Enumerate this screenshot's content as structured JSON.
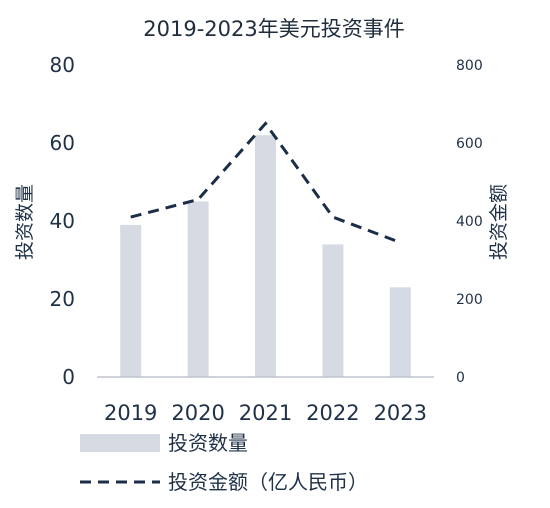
{
  "chart_data": {
    "type": "bar+line",
    "title": "2019-2023年美元投资事件",
    "categories": [
      "2019",
      "2020",
      "2021",
      "2022",
      "2023"
    ],
    "series": [
      {
        "name": "投资数量",
        "type": "bar",
        "axis": "left",
        "values": [
          39,
          45,
          62,
          34,
          23
        ]
      },
      {
        "name": "投资金额（亿人民币）",
        "type": "line",
        "style": "dashed",
        "axis": "right",
        "values": [
          410,
          455,
          650,
          410,
          345
        ]
      }
    ],
    "ylabel_left": "投资数量",
    "ylabel_right": "投资金额",
    "ylim_left": [
      0,
      80
    ],
    "ylim_right": [
      0,
      800
    ],
    "yticks_left": [
      "0",
      "20",
      "40",
      "60",
      "80"
    ],
    "yticks_right": [
      "0",
      "200",
      "400",
      "600",
      "800"
    ],
    "grid": false,
    "legend_position": "bottom",
    "colors": {
      "bar": "#d5dae3",
      "line": "#1b2e48",
      "text": "#1f3147",
      "axis": "#bfc4cc"
    }
  }
}
